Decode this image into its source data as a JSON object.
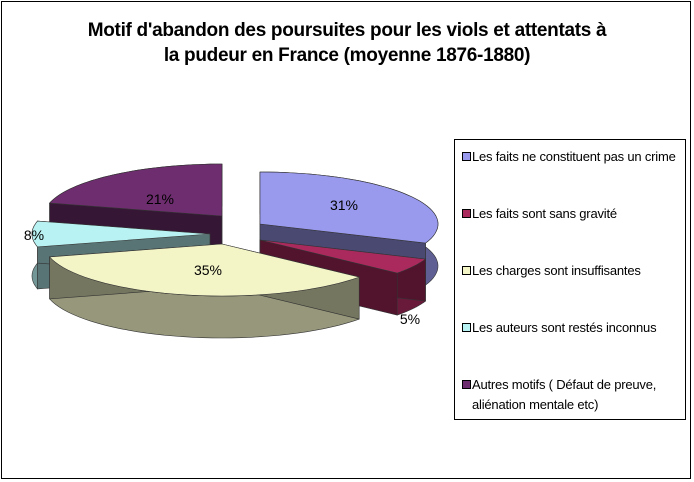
{
  "chart_data": {
    "type": "pie",
    "title_lines": [
      "Motif d'abandon des poursuites pour les viols et attentats à",
      "la pudeur en France (moyenne 1876-1880)"
    ],
    "slices": [
      {
        "label": "Les faits ne constituent pas un crime",
        "value": 31,
        "display": "31%",
        "color": "#9999ee"
      },
      {
        "label": "Les faits sont sans gravité",
        "value": 5,
        "display": "5%",
        "color": "#aa2a5e"
      },
      {
        "label": "Les charges sont insuffisantes",
        "value": 35,
        "display": "35%",
        "color": "#f4f5c7"
      },
      {
        "label": "Les auteurs sont restés inconnus",
        "value": 8,
        "display": "8%",
        "color": "#b9f2f2"
      },
      {
        "label": "Autres motifs ( Défaut de preuve, aliénation mentale etc)",
        "value": 21,
        "display": "21%",
        "color": "#6e2d6e"
      }
    ],
    "legend_placement": "right",
    "style": "3d-exploded-pie"
  }
}
